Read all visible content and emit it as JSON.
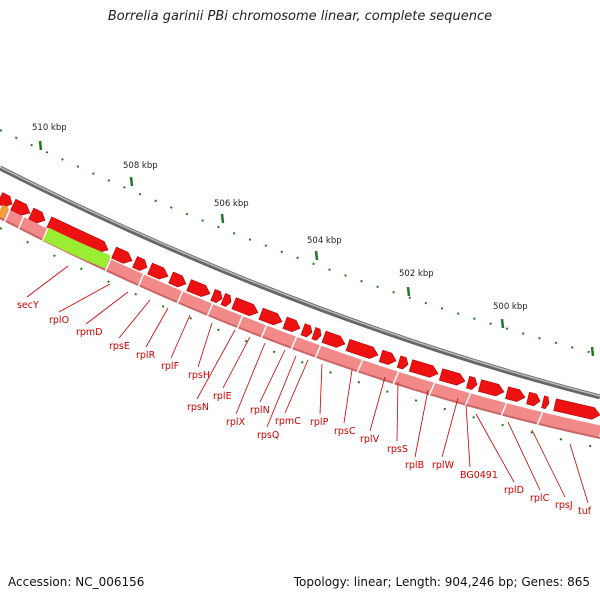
{
  "title": "Borrelia garinii PBi chromosome linear, complete sequence",
  "footer": {
    "accession": "Accession: NC_006156",
    "summary": "Topology: linear; Length: 904,246 bp; Genes: 865"
  },
  "scale_labels": [
    "510 kbp",
    "508 kbp",
    "506 kbp",
    "504 kbp",
    "502 kbp",
    "500 kbp"
  ],
  "colors": {
    "gene_forward": "#ee1111",
    "gene_reverse": "#f28a8a",
    "highlight_gene": "#99ee33",
    "backbone": "#888888",
    "label": "#cc0000",
    "tick": "#227722"
  },
  "gene_labels": [
    "secY",
    "rplO",
    "rpmD",
    "rpsE",
    "rplR",
    "rplF",
    "rpsH",
    "rpsN",
    "rplE",
    "rplX",
    "rplN",
    "rpsQ",
    "rpmC",
    "rplP",
    "rpsC",
    "rplV",
    "rpsS",
    "rplB",
    "rplW",
    "BG0491",
    "rplD",
    "rplC",
    "rpsJ",
    "tuf"
  ]
}
